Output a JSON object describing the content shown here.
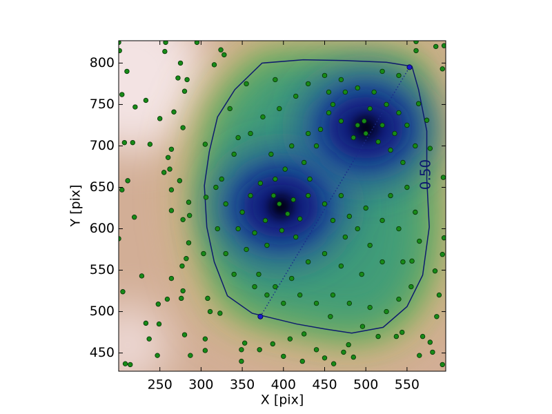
{
  "chart_data": {
    "type": "scatter",
    "xlabel": "X [pix]",
    "ylabel": "Y [pix]",
    "xlim": [
      200,
      597
    ],
    "ylim": [
      428,
      827
    ],
    "xticks": [
      250,
      300,
      350,
      400,
      450,
      500,
      550
    ],
    "yticks": [
      450,
      500,
      550,
      600,
      650,
      700,
      750,
      800
    ],
    "series": [
      {
        "color": "#178a17",
        "x": [
          200,
          201,
          210,
          204,
          220,
          233,
          250,
          207,
          217,
          238,
          211,
          204,
          219,
          200,
          228,
          205,
          248,
          208,
          214,
          237,
          233,
          249,
          247,
          257,
          256,
          272,
          280,
          283,
          275,
          267,
          278,
          264,
          260,
          255,
          262,
          274,
          264,
          285,
          286,
          264,
          278,
          285,
          277,
          282,
          264,
          276,
          259,
          280,
          287,
          278,
          305,
          305,
          295,
          324,
          328,
          316,
          305,
          306,
          303,
          308,
          311,
          323,
          561,
          585,
          595,
          593,
          561,
          564,
          574,
          578,
          594,
          595,
          593,
          584,
          589,
          586,
          578,
          581,
          593,
          565,
          569,
          556,
          349,
          353,
          371,
          349,
          387,
          400,
          423,
          440,
          450,
          461,
          485,
          496,
          515,
          537,
          544,
          479,
          473,
          408,
          425,
          457,
          395,
          405,
          388,
          412,
          378,
          420,
          390,
          402,
          385,
          410,
          372,
          360,
          350,
          365,
          380,
          398,
          415,
          430,
          425,
          440,
          432,
          450,
          460,
          470,
          480,
          475,
          490,
          500,
          505,
          520,
          530,
          540,
          545,
          520,
          495,
          470,
          450,
          430,
          410,
          390,
          370,
          355,
          345,
          330,
          325,
          340,
          345,
          360,
          375,
          395,
          415,
          430,
          450,
          470,
          490,
          510,
          525,
          540,
          550,
          560,
          545,
          530,
          515,
          500,
          490,
          498,
          485,
          470,
          455,
          445,
          430,
          460,
          475,
          505,
          520,
          535,
          550,
          560,
          565,
          555,
          540,
          525,
          505,
          480,
          460,
          440,
          420,
          400,
          380,
          365,
          340,
          330,
          320,
          318,
          335,
          355,
          390,
          455,
          520,
          540
        ],
        "values": [
          825,
          815,
          790,
          762,
          747,
          755,
          733,
          704,
          704,
          702,
          658,
          647,
          614,
          588,
          543,
          524,
          509,
          437,
          436,
          467,
          486,
          485,
          447,
          825,
          814,
          782,
          766,
          780,
          800,
          741,
          722,
          696,
          686,
          668,
          672,
          658,
          647,
          632,
          616,
          622,
          611,
          583,
          555,
          564,
          540,
          516,
          515,
          472,
          447,
          525,
          453,
          467,
          825,
          816,
          810,
          798,
          702,
          638,
          570,
          516,
          500,
          498,
          826,
          820,
          821,
          793,
          815,
          751,
          731,
          697,
          662,
          589,
          569,
          549,
          520,
          494,
          463,
          451,
          436,
          447,
          470,
          561,
          440,
          462,
          454,
          454,
          461,
          446,
          440,
          454,
          444,
          437,
          445,
          482,
          470,
          470,
          475,
          460,
          451,
          467,
          473,
          494,
          630,
          618,
          640,
          635,
          610,
          612,
          660,
          672,
          690,
          700,
          655,
          640,
          620,
          595,
          580,
          598,
          590,
          640,
          680,
          700,
          660,
          630,
          610,
          640,
          615,
          590,
          600,
          625,
          580,
          610,
          640,
          600,
          560,
          560,
          545,
          555,
          570,
          560,
          540,
          530,
          545,
          575,
          600,
          630,
          660,
          690,
          710,
          715,
          735,
          745,
          760,
          775,
          785,
          780,
          770,
          765,
          750,
          740,
          725,
          700,
          680,
          695,
          705,
          715,
          725,
          730,
          710,
          730,
          740,
          720,
          715,
          750,
          765,
          745,
          725,
          715,
          650,
          620,
          585,
          530,
          515,
          500,
          505,
          510,
          520,
          510,
          520,
          510,
          520,
          530,
          545,
          570,
          600,
          650,
          745,
          775,
          780,
          765,
          790,
          785
        ]
      }
    ],
    "markers": {
      "color": "#1a1acc",
      "x": [
        372,
        553
      ],
      "values": [
        494,
        795
      ]
    },
    "density_peaks": {
      "x": [
        397,
        500
      ],
      "values": [
        627,
        722
      ]
    },
    "contour": {
      "label": "0.50",
      "color": "#0d1a6e",
      "x": [
        374,
        424,
        475,
        525,
        556,
        564,
        574,
        574,
        577,
        569,
        550,
        521,
        483,
        450,
        416,
        387,
        362,
        332,
        316,
        307,
        304,
        310,
        320,
        341
      ],
      "values": [
        800,
        804,
        803,
        801,
        796,
        768,
        718,
        660,
        602,
        544,
        506,
        481,
        474,
        479,
        485,
        492,
        498,
        519,
        560,
        602,
        652,
        693,
        735,
        768
      ]
    }
  }
}
